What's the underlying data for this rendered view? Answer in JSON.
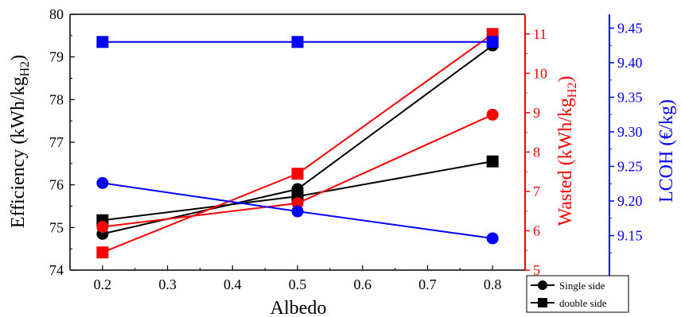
{
  "chart_data": {
    "type": "line",
    "x_label": "Albedo",
    "x_ticks": [
      "0.2",
      "0.3",
      "0.4",
      "0.5",
      "0.6",
      "0.7",
      "0.8"
    ],
    "xlim": [
      0.15,
      0.85
    ],
    "axes": {
      "left": {
        "label_main": "Efficiency (kWh/kg",
        "label_sub": "H2",
        "label_end": ")",
        "ylim": [
          74,
          80
        ],
        "ticks": [
          "74",
          "75",
          "76",
          "77",
          "78",
          "79",
          "80"
        ],
        "color": "#000000"
      },
      "right1": {
        "label_main": "Wasted (kWh/kg",
        "label_sub": "H2",
        "label_end": ")",
        "ylim": [
          5,
          11.5
        ],
        "ticks": [
          "5",
          "6",
          "7",
          "8",
          "9",
          "10",
          "11"
        ],
        "color": "#ff0000"
      },
      "right2": {
        "label": "LCOH (€/kg)",
        "ylim": [
          9.1,
          9.47
        ],
        "ticks": [
          "9.15",
          "9.20",
          "9.25",
          "9.30",
          "9.35",
          "9.40",
          "9.45"
        ],
        "color": "#0000ff"
      }
    },
    "series": [
      {
        "axis": "left",
        "marker": "circle",
        "color": "#000000",
        "x": [
          0.2,
          0.5,
          0.8
        ],
        "y": [
          74.85,
          75.9,
          79.27
        ]
      },
      {
        "axis": "left",
        "marker": "square",
        "color": "#000000",
        "x": [
          0.2,
          0.5,
          0.8
        ],
        "y": [
          75.17,
          75.73,
          76.55
        ]
      },
      {
        "axis": "right1",
        "marker": "circle",
        "color": "#ff0000",
        "x": [
          0.2,
          0.5,
          0.8
        ],
        "y": [
          6.1,
          6.7,
          8.95
        ]
      },
      {
        "axis": "right1",
        "marker": "square",
        "color": "#ff0000",
        "x": [
          0.2,
          0.5,
          0.8
        ],
        "y": [
          5.45,
          7.45,
          11.0
        ]
      },
      {
        "axis": "right2",
        "marker": "circle",
        "color": "#0000ff",
        "x": [
          0.2,
          0.5,
          0.8
        ],
        "y": [
          9.226,
          9.185,
          9.146
        ]
      },
      {
        "axis": "right2",
        "marker": "square",
        "color": "#0000ff",
        "x": [
          0.2,
          0.5,
          0.8
        ],
        "y": [
          9.43,
          9.43,
          9.43
        ]
      }
    ],
    "legend": {
      "placement": "bottom-right",
      "entries": [
        {
          "marker": "circle",
          "label": "Single side"
        },
        {
          "marker": "square",
          "label": "double side"
        }
      ]
    }
  }
}
